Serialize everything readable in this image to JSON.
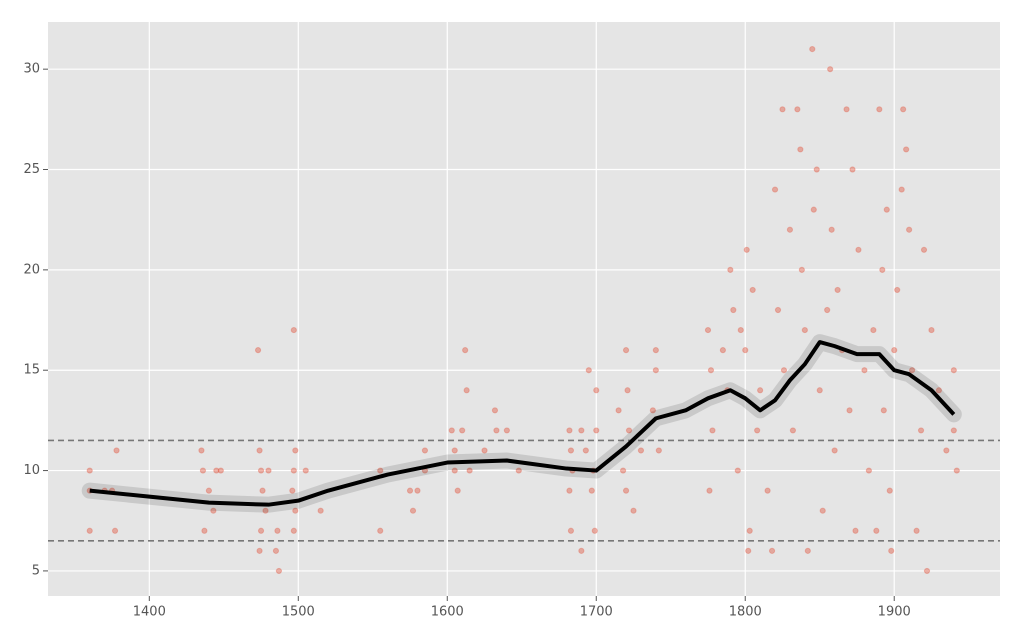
{
  "chart_data": {
    "type": "scatter",
    "xlim": [
      1332,
      1971
    ],
    "ylim": [
      3.75,
      32.35
    ],
    "xticks": [
      1400,
      1500,
      1600,
      1700,
      1800,
      1900
    ],
    "yticks": [
      5,
      10,
      15,
      20,
      25,
      30
    ],
    "grid": true,
    "color": "#e24a33",
    "x": [
      1360,
      1360,
      1360,
      1370,
      1375,
      1378,
      1377,
      1435,
      1436,
      1437,
      1440,
      1443,
      1445,
      1448,
      1473,
      1474,
      1475,
      1476,
      1475,
      1474,
      1478,
      1480,
      1485,
      1487,
      1486,
      1497,
      1498,
      1497,
      1496,
      1498,
      1497,
      1505,
      1515,
      1555,
      1555,
      1575,
      1577,
      1580,
      1585,
      1585,
      1603,
      1605,
      1605,
      1607,
      1610,
      1612,
      1613,
      1615,
      1625,
      1632,
      1633,
      1640,
      1648,
      1682,
      1683,
      1684,
      1682,
      1683,
      1690,
      1690,
      1693,
      1695,
      1697,
      1700,
      1700,
      1698,
      1699,
      1715,
      1718,
      1720,
      1721,
      1722,
      1720,
      1725,
      1730,
      1738,
      1740,
      1740,
      1742,
      1775,
      1777,
      1778,
      1776,
      1785,
      1788,
      1790,
      1792,
      1795,
      1797,
      1800,
      1801,
      1803,
      1802,
      1805,
      1808,
      1810,
      1815,
      1818,
      1820,
      1822,
      1825,
      1826,
      1830,
      1832,
      1835,
      1837,
      1838,
      1840,
      1842,
      1845,
      1846,
      1848,
      1850,
      1852,
      1855,
      1857,
      1858,
      1860,
      1862,
      1865,
      1868,
      1870,
      1872,
      1874,
      1876,
      1880,
      1883,
      1886,
      1888,
      1890,
      1892,
      1893,
      1895,
      1897,
      1898,
      1900,
      1902,
      1905,
      1906,
      1908,
      1910,
      1912,
      1915,
      1918,
      1920,
      1922,
      1925,
      1930,
      1935,
      1940,
      1942,
      1940
    ],
    "values": [
      10,
      7,
      9,
      9,
      9,
      11,
      7,
      11,
      10,
      7,
      9,
      8,
      10,
      10,
      16,
      11,
      10,
      9,
      7,
      6,
      8,
      10,
      6,
      5,
      7,
      17,
      11,
      10,
      9,
      8,
      7,
      10,
      8,
      10,
      7,
      9,
      8,
      9,
      10,
      11,
      12,
      11,
      10,
      9,
      12,
      16,
      14,
      10,
      11,
      13,
      12,
      12,
      10,
      12,
      11,
      10,
      9,
      7,
      12,
      6,
      11,
      15,
      9,
      14,
      12,
      10,
      7,
      13,
      10,
      16,
      14,
      12,
      9,
      8,
      11,
      13,
      16,
      15,
      11,
      17,
      15,
      12,
      9,
      16,
      14,
      20,
      18,
      10,
      17,
      16,
      21,
      7,
      6,
      19,
      12,
      14,
      9,
      6,
      24,
      18,
      28,
      15,
      22,
      12,
      28,
      26,
      20,
      17,
      6,
      31,
      23,
      25,
      14,
      8,
      18,
      30,
      22,
      11,
      19,
      16,
      28,
      13,
      25,
      7,
      21,
      15,
      10,
      17,
      7,
      28,
      20,
      13,
      23,
      9,
      6,
      16,
      19,
      24,
      28,
      26,
      22,
      15,
      7,
      12,
      21,
      5,
      17,
      14,
      11,
      15,
      10,
      12
    ],
    "trend": {
      "color": "#000000",
      "x": [
        1360,
        1400,
        1440,
        1480,
        1500,
        1520,
        1560,
        1600,
        1640,
        1680,
        1700,
        1720,
        1740,
        1760,
        1775,
        1790,
        1800,
        1810,
        1820,
        1830,
        1840,
        1850,
        1860,
        1875,
        1890,
        1900,
        1910,
        1925,
        1940
      ],
      "values": [
        9,
        8.7,
        8.4,
        8.3,
        8.5,
        9,
        9.8,
        10.4,
        10.5,
        10.1,
        10,
        11.2,
        12.6,
        13,
        13.6,
        14,
        13.6,
        13,
        13.5,
        14.5,
        15.3,
        16.4,
        16.2,
        15.8,
        15.8,
        15,
        14.8,
        14,
        12.8
      ]
    },
    "hlines": [
      11.5,
      6.5
    ]
  }
}
